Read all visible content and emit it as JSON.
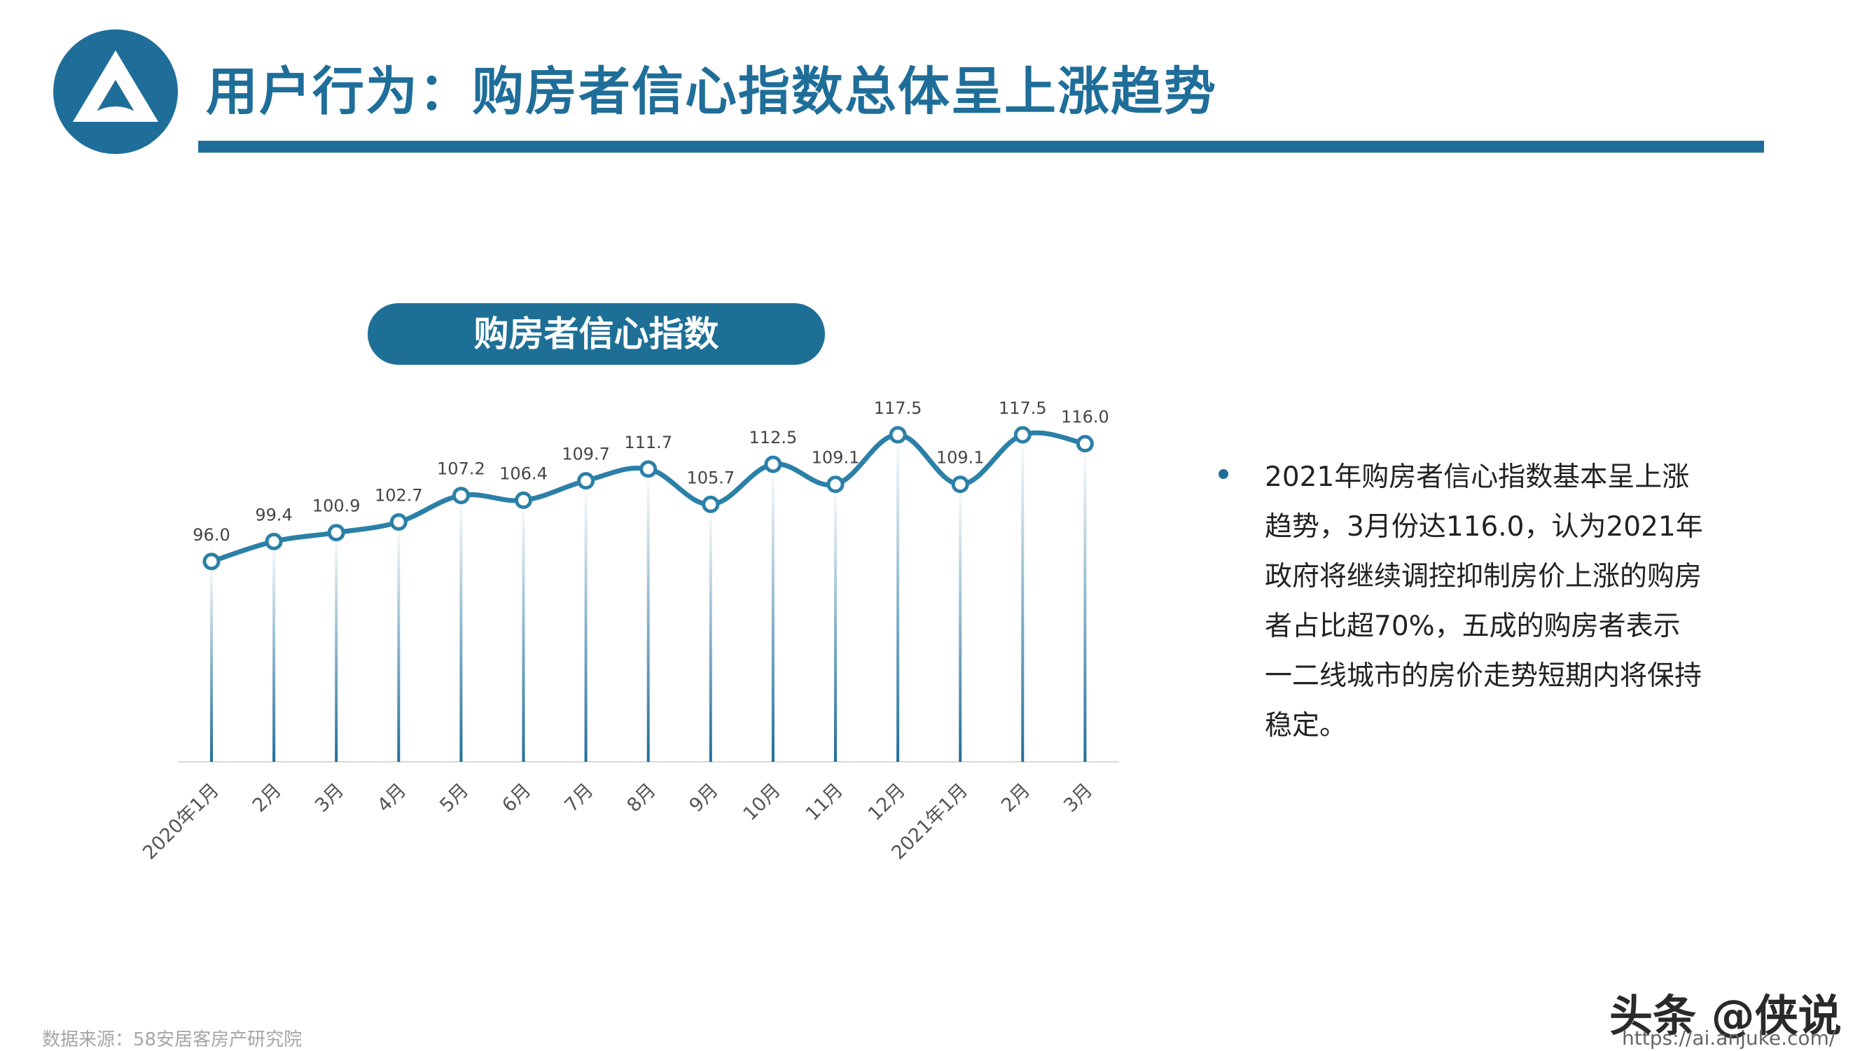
{
  "header": {
    "title": "用户行为：购房者信心指数总体呈上涨趋势",
    "accent_color": "#1f6e99",
    "logo_icon": "anjuke-triangle-logo"
  },
  "chart_panel": {
    "label": "购房者信心指数"
  },
  "chart_data": {
    "type": "line",
    "categories": [
      "2020年1月",
      "2月",
      "3月",
      "4月",
      "5月",
      "6月",
      "7月",
      "8月",
      "9月",
      "10月",
      "11月",
      "12月",
      "2021年1月",
      "2月",
      "3月"
    ],
    "values": [
      96.0,
      99.4,
      100.9,
      102.7,
      107.2,
      106.4,
      109.7,
      111.7,
      105.7,
      112.5,
      109.1,
      117.5,
      109.1,
      117.5,
      116.0
    ],
    "value_labels": [
      "96.0",
      "99.4",
      "100.9",
      "102.7",
      "107.2",
      "106.4",
      "109.7",
      "111.7",
      "105.7",
      "112.5",
      "109.1",
      "117.5",
      "109.1",
      "117.5",
      "116.0"
    ],
    "title": "购房者信心指数",
    "xlabel": "",
    "ylabel": "",
    "ylim": [
      62,
      120
    ],
    "grid": false,
    "line_color": "#2b80a8",
    "drop_line_color": "#1f6e99"
  },
  "notes": {
    "bullet": "2021年购房者信心指数基本呈上涨趋势，3月份达116.0，认为2021年政府将继续调控抑制房价上涨的购房者占比超70%，五成的购房者表示一二线城市的房价走势短期内将保持稳定。"
  },
  "footer": {
    "source": "数据来源：58安居客房产研究院",
    "watermark": "头条 @侠说",
    "url": "https://ai.anjuke.com/"
  }
}
